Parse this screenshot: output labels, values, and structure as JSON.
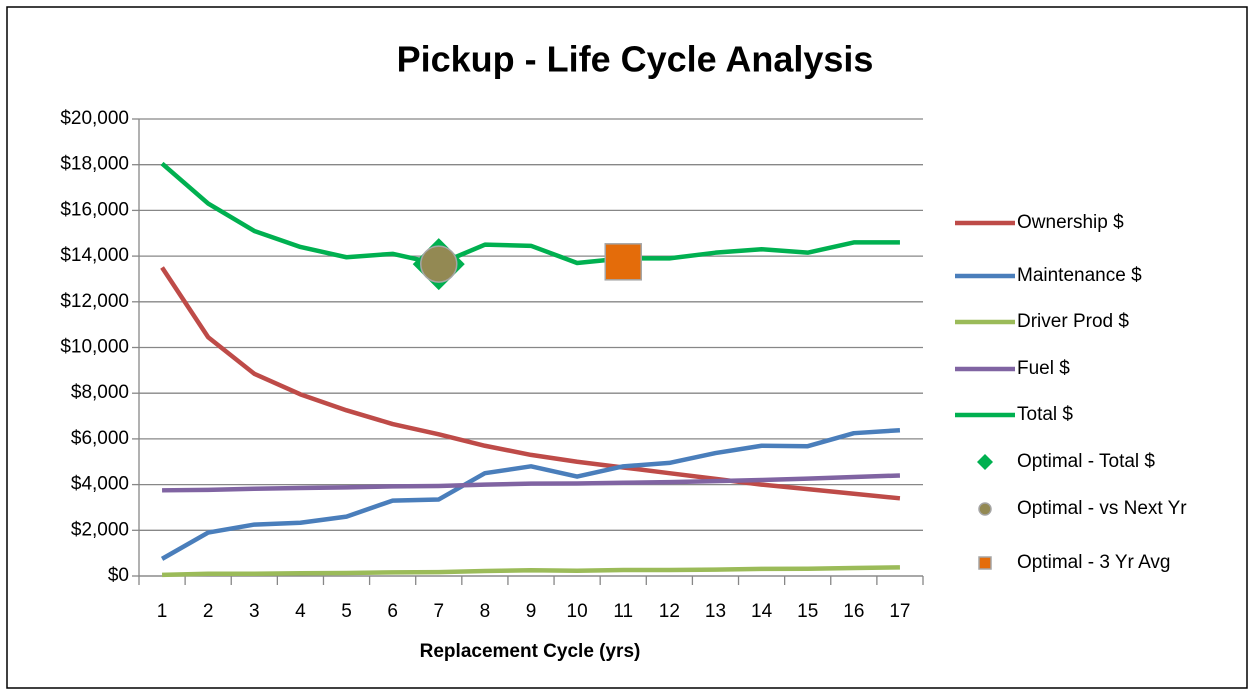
{
  "chart_data": {
    "type": "line",
    "title": "Pickup -  Life Cycle Analysis",
    "x_label": "Replacement Cycle (yrs)",
    "categories": [
      "1",
      "2",
      "3",
      "4",
      "5",
      "6",
      "7",
      "8",
      "9",
      "10",
      "11",
      "12",
      "13",
      "14",
      "15",
      "16",
      "17"
    ],
    "ylim": [
      0,
      20000
    ],
    "yticks": [
      {
        "value": 0,
        "label": "$0"
      },
      {
        "value": 2000,
        "label": "$2,000"
      },
      {
        "value": 4000,
        "label": "$4,000"
      },
      {
        "value": 6000,
        "label": "$6,000"
      },
      {
        "value": 8000,
        "label": "$8,000"
      },
      {
        "value": 10000,
        "label": "$10,000"
      },
      {
        "value": 12000,
        "label": "$12,000"
      },
      {
        "value": 14000,
        "label": "$14,000"
      },
      {
        "value": 16000,
        "label": "$16,000"
      },
      {
        "value": 18000,
        "label": "$18,000"
      },
      {
        "value": 20000,
        "label": "$20,000"
      }
    ],
    "grid": true,
    "legend": "right",
    "series": [
      {
        "name": "Ownership $",
        "color": "#be4b48",
        "values": [
          13500,
          10450,
          8850,
          7950,
          7250,
          6650,
          6200,
          5700,
          5300,
          5000,
          4750,
          4500,
          4250,
          4000,
          3800,
          3600,
          3400
        ]
      },
      {
        "name": "Maintenance $",
        "color": "#4a7ebb",
        "values": [
          750,
          1900,
          2250,
          2330,
          2600,
          3300,
          3350,
          4500,
          4800,
          4350,
          4800,
          4950,
          5380,
          5700,
          5680,
          6250,
          6380
        ]
      },
      {
        "name": "Driver Prod $",
        "color": "#9bbb59",
        "values": [
          50,
          100,
          100,
          120,
          130,
          160,
          170,
          220,
          250,
          230,
          260,
          260,
          280,
          310,
          320,
          350,
          380
        ]
      },
      {
        "name": "Fuel $",
        "color": "#8064a2",
        "values": [
          3750,
          3770,
          3820,
          3850,
          3880,
          3920,
          3940,
          4000,
          4040,
          4050,
          4080,
          4110,
          4150,
          4200,
          4260,
          4330,
          4400
        ]
      },
      {
        "name": "Total $",
        "color": "#00b050",
        "values": [
          18050,
          16300,
          15100,
          14400,
          13950,
          14100,
          13650,
          14500,
          14450,
          13700,
          13900,
          13900,
          14150,
          14300,
          14150,
          14600,
          14600
        ]
      },
      {
        "name": "Optimal - Total $",
        "color": "#00b050",
        "marker": "diamond",
        "values": [
          null,
          null,
          null,
          null,
          null,
          null,
          13650,
          null,
          null,
          null,
          null,
          null,
          null,
          null,
          null,
          null,
          null
        ]
      },
      {
        "name": "Optimal - vs Next Yr",
        "color": "#938953",
        "marker": "circle",
        "values": [
          null,
          null,
          null,
          null,
          null,
          null,
          13650,
          null,
          null,
          null,
          null,
          null,
          null,
          null,
          null,
          null,
          null
        ]
      },
      {
        "name": "Optimal - 3 Yr Avg",
        "color": "#e46c0a",
        "marker": "square",
        "values": [
          null,
          null,
          null,
          null,
          null,
          null,
          null,
          null,
          null,
          null,
          13750,
          null,
          null,
          null,
          null,
          null,
          null
        ]
      }
    ]
  }
}
